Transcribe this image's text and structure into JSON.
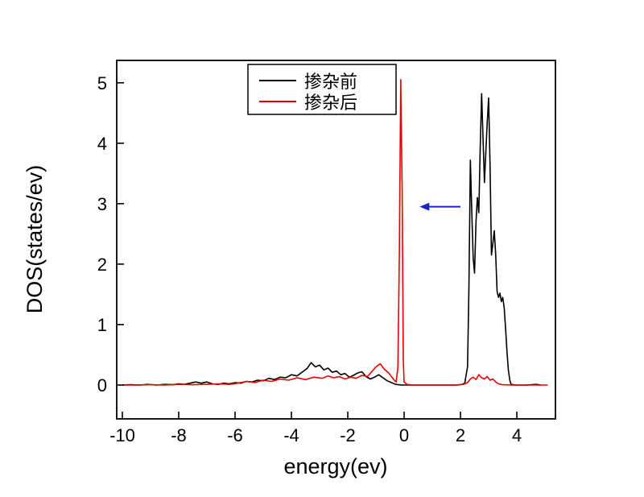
{
  "chart_data": {
    "type": "line",
    "title": "",
    "xlabel": "energy(ev)",
    "ylabel": "DOS(states/ev)",
    "xlim": [
      -10.2,
      5.37
    ],
    "ylim": [
      -0.56,
      5.37
    ],
    "xticks": [
      -10,
      -8,
      -6,
      -4,
      -2,
      0,
      2,
      4
    ],
    "yticks": [
      0,
      1,
      2,
      3,
      4,
      5
    ],
    "grid": false,
    "legend": {
      "position": "top-center",
      "entries": [
        {
          "label": "掺杂前",
          "color": "#000000"
        },
        {
          "label": "掺杂后",
          "color": "#e80000"
        }
      ]
    },
    "arrow": {
      "x_from": 2.0,
      "x_to": 0.55,
      "y": 2.95,
      "color": "#2020c8"
    },
    "series": [
      {
        "name": "掺杂前",
        "color": "#000000",
        "points": [
          [
            -10,
            0
          ],
          [
            -9.7,
            0.005
          ],
          [
            -9.4,
            0
          ],
          [
            -9.1,
            0.01
          ],
          [
            -8.8,
            0
          ],
          [
            -8.5,
            0.01
          ],
          [
            -8.2,
            0.005
          ],
          [
            -8.0,
            0.02
          ],
          [
            -7.8,
            0.01
          ],
          [
            -7.6,
            0.03
          ],
          [
            -7.4,
            0.05
          ],
          [
            -7.2,
            0.03
          ],
          [
            -7.0,
            0.05
          ],
          [
            -6.8,
            0.02
          ],
          [
            -6.6,
            0.01
          ],
          [
            -6.4,
            0.03
          ],
          [
            -6.2,
            0.02
          ],
          [
            -6.0,
            0.04
          ],
          [
            -5.8,
            0.03
          ],
          [
            -5.6,
            0.06
          ],
          [
            -5.4,
            0.05
          ],
          [
            -5.2,
            0.08
          ],
          [
            -5.0,
            0.07
          ],
          [
            -4.8,
            0.11
          ],
          [
            -4.6,
            0.09
          ],
          [
            -4.4,
            0.13
          ],
          [
            -4.2,
            0.12
          ],
          [
            -4.0,
            0.17
          ],
          [
            -3.8,
            0.15
          ],
          [
            -3.6,
            0.22
          ],
          [
            -3.45,
            0.27
          ],
          [
            -3.3,
            0.37
          ],
          [
            -3.15,
            0.3
          ],
          [
            -3.0,
            0.33
          ],
          [
            -2.85,
            0.25
          ],
          [
            -2.7,
            0.28
          ],
          [
            -2.55,
            0.21
          ],
          [
            -2.4,
            0.23
          ],
          [
            -2.25,
            0.17
          ],
          [
            -2.1,
            0.19
          ],
          [
            -1.95,
            0.13
          ],
          [
            -1.8,
            0.16
          ],
          [
            -1.65,
            0.2
          ],
          [
            -1.5,
            0.22
          ],
          [
            -1.35,
            0.14
          ],
          [
            -1.2,
            0.1
          ],
          [
            -1.05,
            0.13
          ],
          [
            -0.9,
            0.17
          ],
          [
            -0.75,
            0.12
          ],
          [
            -0.6,
            0.07
          ],
          [
            -0.45,
            0.04
          ],
          [
            -0.3,
            0.01
          ],
          [
            -0.1,
            0
          ],
          [
            0.3,
            0
          ],
          [
            0.8,
            0
          ],
          [
            1.4,
            0
          ],
          [
            1.9,
            0
          ],
          [
            2.05,
            0.01
          ],
          [
            2.15,
            0.03
          ],
          [
            2.25,
            0.3
          ],
          [
            2.3,
            1.6
          ],
          [
            2.35,
            3.72
          ],
          [
            2.4,
            2.9
          ],
          [
            2.45,
            2.1
          ],
          [
            2.5,
            1.85
          ],
          [
            2.55,
            2.7
          ],
          [
            2.6,
            3.1
          ],
          [
            2.65,
            2.85
          ],
          [
            2.7,
            3.9
          ],
          [
            2.75,
            4.82
          ],
          [
            2.8,
            4.1
          ],
          [
            2.85,
            3.35
          ],
          [
            2.9,
            3.85
          ],
          [
            2.95,
            4.35
          ],
          [
            3.0,
            4.75
          ],
          [
            3.05,
            3.6
          ],
          [
            3.1,
            2.15
          ],
          [
            3.15,
            2.35
          ],
          [
            3.2,
            2.55
          ],
          [
            3.25,
            2.15
          ],
          [
            3.3,
            1.55
          ],
          [
            3.35,
            1.45
          ],
          [
            3.4,
            1.52
          ],
          [
            3.45,
            1.38
          ],
          [
            3.5,
            1.45
          ],
          [
            3.55,
            1.28
          ],
          [
            3.6,
            0.95
          ],
          [
            3.65,
            0.55
          ],
          [
            3.7,
            0.25
          ],
          [
            3.75,
            0.08
          ],
          [
            3.8,
            0.01
          ],
          [
            3.95,
            0
          ],
          [
            4.3,
            0
          ],
          [
            4.7,
            0.01
          ],
          [
            4.85,
            0
          ]
        ]
      },
      {
        "name": "掺杂后",
        "color": "#e80000",
        "points": [
          [
            -10,
            0
          ],
          [
            -9.5,
            0
          ],
          [
            -9.0,
            0.005
          ],
          [
            -8.5,
            0
          ],
          [
            -8.0,
            0.01
          ],
          [
            -7.5,
            0.005
          ],
          [
            -7.0,
            0.01
          ],
          [
            -6.6,
            0.02
          ],
          [
            -6.2,
            0.01
          ],
          [
            -5.9,
            0.03
          ],
          [
            -5.6,
            0.06
          ],
          [
            -5.3,
            0.04
          ],
          [
            -5.0,
            0.08
          ],
          [
            -4.7,
            0.06
          ],
          [
            -4.4,
            0.1
          ],
          [
            -4.1,
            0.08
          ],
          [
            -3.8,
            0.12
          ],
          [
            -3.5,
            0.09
          ],
          [
            -3.2,
            0.13
          ],
          [
            -2.9,
            0.11
          ],
          [
            -2.7,
            0.15
          ],
          [
            -2.5,
            0.12
          ],
          [
            -2.3,
            0.14
          ],
          [
            -2.1,
            0.1
          ],
          [
            -1.9,
            0.13
          ],
          [
            -1.7,
            0.11
          ],
          [
            -1.5,
            0.16
          ],
          [
            -1.3,
            0.14
          ],
          [
            -1.15,
            0.22
          ],
          [
            -1.0,
            0.3
          ],
          [
            -0.85,
            0.35
          ],
          [
            -0.7,
            0.26
          ],
          [
            -0.55,
            0.2
          ],
          [
            -0.45,
            0.14
          ],
          [
            -0.35,
            0.08
          ],
          [
            -0.28,
            0.05
          ],
          [
            -0.22,
            0.3
          ],
          [
            -0.17,
            2.2
          ],
          [
            -0.12,
            5.05
          ],
          [
            -0.07,
            3.2
          ],
          [
            -0.03,
            0.4
          ],
          [
            0.0,
            0.05
          ],
          [
            0.1,
            0.01
          ],
          [
            0.3,
            0
          ],
          [
            0.8,
            0
          ],
          [
            1.3,
            0
          ],
          [
            1.8,
            0
          ],
          [
            2.1,
            0.01
          ],
          [
            2.25,
            0.04
          ],
          [
            2.35,
            0.1
          ],
          [
            2.45,
            0.13
          ],
          [
            2.55,
            0.09
          ],
          [
            2.65,
            0.17
          ],
          [
            2.75,
            0.12
          ],
          [
            2.85,
            0.1
          ],
          [
            2.95,
            0.14
          ],
          [
            3.05,
            0.08
          ],
          [
            3.15,
            0.1
          ],
          [
            3.25,
            0.05
          ],
          [
            3.35,
            0.02
          ],
          [
            3.5,
            0.005
          ],
          [
            3.8,
            0
          ],
          [
            4.2,
            0
          ],
          [
            4.7,
            0
          ],
          [
            5.1,
            0
          ]
        ]
      }
    ]
  }
}
